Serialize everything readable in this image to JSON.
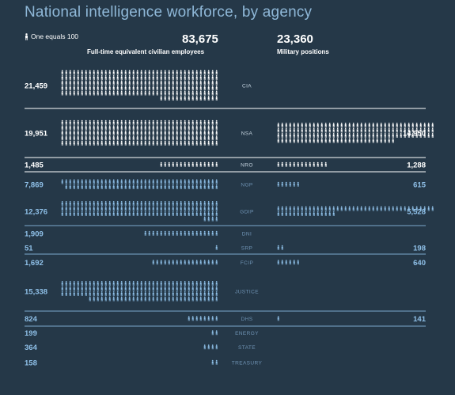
{
  "title": "National intelligence workforce, by agency",
  "key_label": "One equals 100",
  "civilian": {
    "total": "83,675",
    "label": "Full-time equivalent civilian employees"
  },
  "military": {
    "total": "23,360",
    "label": "Military positions"
  },
  "colors": {
    "background": "#253848",
    "white": "#ffffff",
    "blue": "#8fc0e8",
    "divider": "#7aa8cc"
  },
  "chart_data": {
    "type": "pictograph",
    "title": "National intelligence workforce, by agency",
    "unit": "One equals 100",
    "series": [
      {
        "name": "Full-time equivalent civilian employees",
        "total": 83675
      },
      {
        "name": "Military positions",
        "total": 23360
      }
    ],
    "rows": [
      {
        "agency": "CIA",
        "civilian": 21459,
        "civilian_label": "21,459",
        "military": null,
        "military_label": "",
        "highlight": true
      },
      {
        "agency": "NSA",
        "civilian": 19951,
        "civilian_label": "19,951",
        "military": 14950,
        "military_label": "14,950",
        "highlight": true
      },
      {
        "agency": "NRO",
        "civilian": 1485,
        "civilian_label": "1,485",
        "military": 1288,
        "military_label": "1,288",
        "highlight": true
      },
      {
        "agency": "NGP",
        "civilian": 7869,
        "civilian_label": "7,869",
        "military": 615,
        "military_label": "615",
        "highlight": false
      },
      {
        "agency": "GDIP",
        "civilian": 12376,
        "civilian_label": "12,376",
        "military": 5528,
        "military_label": "5,528",
        "highlight": false
      },
      {
        "agency": "DNI",
        "civilian": 1909,
        "civilian_label": "1,909",
        "military": null,
        "military_label": "",
        "highlight": false
      },
      {
        "agency": "SRP",
        "civilian": 51,
        "civilian_label": "51",
        "military": 198,
        "military_label": "198",
        "highlight": false
      },
      {
        "agency": "FCIP",
        "civilian": 1692,
        "civilian_label": "1,692",
        "military": 640,
        "military_label": "640",
        "highlight": false
      },
      {
        "agency": "JUSTICE",
        "civilian": 15338,
        "civilian_label": "15,338",
        "military": null,
        "military_label": "",
        "highlight": false
      },
      {
        "agency": "DHS",
        "civilian": 824,
        "civilian_label": "824",
        "military": 141,
        "military_label": "141",
        "highlight": false
      },
      {
        "agency": "ENERGY",
        "civilian": 199,
        "civilian_label": "199",
        "military": null,
        "military_label": "",
        "highlight": false
      },
      {
        "agency": "STATE",
        "civilian": 364,
        "civilian_label": "364",
        "military": null,
        "military_label": "",
        "highlight": false
      },
      {
        "agency": "TREASURY",
        "civilian": 158,
        "civilian_label": "158",
        "military": null,
        "military_label": "",
        "highlight": false
      }
    ]
  }
}
